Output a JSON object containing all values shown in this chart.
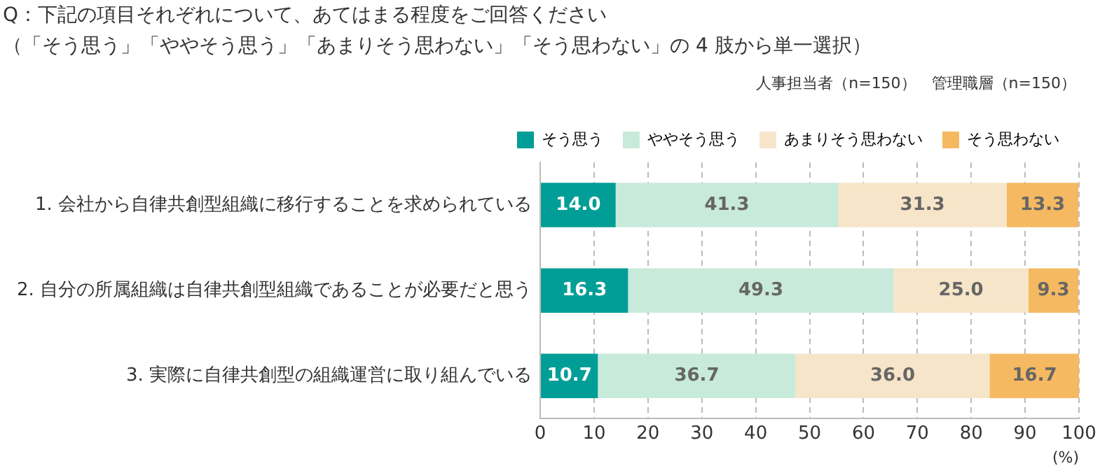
{
  "chart_data": {
    "type": "bar",
    "orientation": "horizontal",
    "stacked": true,
    "title": "Q：下記の項目それぞれについて、あてはまる程度をご回答ください",
    "subtitle": "（「そう思う」「ややそう思う」「あまりそう思わない」「そう思わない」の 4 肢から単一選択）",
    "annotations": [
      "人事担当者（n=150）　管理職層（n=150）"
    ],
    "xlabel": "(%)",
    "categories": [
      "1. 会社から自律共創型組織に移行することを求められている",
      "2. 自分の所属組織は自律共創型組織であることが必要だと思う",
      "3. 実際に自律共創型の組織運営に取り組んでいる"
    ],
    "series": [
      {
        "name": "そう思う",
        "color": "#009e96",
        "values": [
          14.0,
          16.3,
          10.7
        ],
        "value_labels": [
          "14.0",
          "16.3",
          "10.7"
        ]
      },
      {
        "name": "ややそう思う",
        "color": "#c8eadb",
        "values": [
          41.3,
          49.3,
          36.7
        ],
        "value_labels": [
          "41.3",
          "49.3",
          "36.7"
        ]
      },
      {
        "name": "あまりそう思わない",
        "color": "#f6e5c8",
        "values": [
          31.3,
          25.0,
          36.0
        ],
        "value_labels": [
          "31.3",
          "25.0",
          "36.0"
        ]
      },
      {
        "name": "そう思わない",
        "color": "#f5b961",
        "values": [
          13.3,
          9.3,
          16.7
        ],
        "value_labels": [
          "13.3",
          "9.3",
          "16.7"
        ]
      }
    ],
    "xlim": [
      0,
      100
    ],
    "xticks": [
      0,
      10,
      20,
      30,
      40,
      50,
      60,
      70,
      80,
      90,
      100
    ],
    "grid": "x",
    "legend": "top right"
  }
}
